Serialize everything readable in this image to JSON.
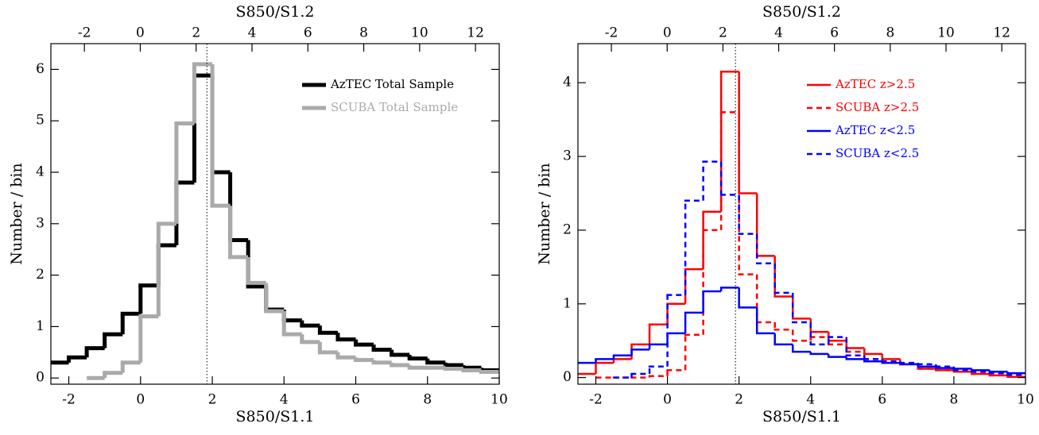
{
  "chart_data": [
    {
      "type": "histogram",
      "xlabel": "S850/S1.1",
      "x2label": "S850/S1.2",
      "ylabel": "Number / bin",
      "bins": [
        -2.5,
        -2,
        -1.5,
        -1,
        -0.5,
        0,
        0.5,
        1,
        1.5,
        2,
        2.5,
        3,
        3.5,
        4,
        4.5,
        5,
        5.5,
        6,
        6.5,
        7,
        7.5,
        8,
        8.5,
        9,
        9.5,
        10
      ],
      "xlim": [
        -2.5,
        10
      ],
      "xticks": [
        -2,
        0,
        2,
        4,
        6,
        8,
        10
      ],
      "x2lim": [
        -3.2,
        12.85
      ],
      "x2ticks": [
        -2,
        0,
        2,
        4,
        6,
        8,
        10,
        12
      ],
      "ylim": [
        -0.12,
        6.5
      ],
      "yticks": [
        0,
        1,
        2,
        3,
        4,
        5,
        6
      ],
      "vline": 1.85,
      "legend": "upper right",
      "series": [
        {
          "name": "AzTEC Total Sample",
          "color": "#000000",
          "dashed": false,
          "values": [
            0.3,
            0.4,
            0.58,
            0.85,
            1.25,
            1.8,
            2.58,
            3.8,
            5.88,
            4.0,
            2.68,
            1.78,
            1.33,
            1.12,
            1.02,
            0.88,
            0.75,
            0.65,
            0.55,
            0.45,
            0.38,
            0.3,
            0.25,
            0.2,
            0.15
          ]
        },
        {
          "name": "SCUBA Total Sample",
          "color": "#aaaaaa",
          "dashed": false,
          "values": [
            null,
            null,
            0.0,
            0.1,
            0.3,
            1.2,
            3.0,
            4.95,
            6.1,
            3.35,
            2.35,
            1.85,
            1.3,
            0.85,
            0.7,
            0.5,
            0.4,
            0.35,
            0.3,
            0.25,
            0.2,
            0.2,
            0.18,
            0.15,
            0.12
          ]
        }
      ]
    },
    {
      "type": "histogram",
      "xlabel": "S850/S1.1",
      "x2label": "S850/S1.2",
      "ylabel": "Number / bin",
      "bins": [
        -2.5,
        -2,
        -1.5,
        -1,
        -0.5,
        0,
        0.5,
        1,
        1.5,
        2,
        2.5,
        3,
        3.5,
        4,
        4.5,
        5,
        5.5,
        6,
        6.5,
        7,
        7.5,
        8,
        8.5,
        9,
        9.5,
        10
      ],
      "xlim": [
        -2.5,
        10
      ],
      "xticks": [
        -2,
        0,
        2,
        4,
        6,
        8,
        10
      ],
      "x2lim": [
        -3.2,
        12.85
      ],
      "x2ticks": [
        -2,
        0,
        2,
        4,
        6,
        8,
        10,
        12
      ],
      "ylim": [
        -0.09,
        4.53
      ],
      "yticks": [
        0,
        1,
        2,
        3,
        4
      ],
      "vline": 1.9,
      "legend": "upper right",
      "series": [
        {
          "name": "AzTEC z>2.5",
          "color": "#ff0000",
          "dashed": false,
          "values": [
            0.05,
            0.2,
            0.25,
            0.45,
            0.72,
            1.0,
            1.47,
            2.25,
            4.15,
            2.5,
            1.65,
            1.1,
            0.8,
            0.62,
            0.5,
            0.4,
            0.32,
            0.25,
            0.18,
            0.12,
            0.1,
            0.08,
            0.05,
            0.03,
            0.01
          ]
        },
        {
          "name": "SCUBA z>2.5",
          "color": "#ff0000",
          "dashed": true,
          "values": [
            null,
            0.0,
            0.0,
            0.0,
            0.02,
            0.1,
            0.58,
            2.0,
            3.6,
            1.4,
            0.75,
            0.65,
            0.5,
            0.55,
            0.45,
            0.35,
            0.25,
            0.2,
            0.18,
            0.12,
            0.1,
            0.08,
            0.05,
            0.03,
            0.02
          ]
        },
        {
          "name": "AzTEC z<2.5",
          "color": "#0000ff",
          "dashed": false,
          "values": [
            0.2,
            0.25,
            0.3,
            0.38,
            0.45,
            0.6,
            0.88,
            1.17,
            1.22,
            0.95,
            0.6,
            0.45,
            0.35,
            0.32,
            0.28,
            0.25,
            0.22,
            0.2,
            0.18,
            0.15,
            0.13,
            0.12,
            0.1,
            0.08,
            0.06
          ]
        },
        {
          "name": "SCUBA z<2.5",
          "color": "#0000ff",
          "dashed": true,
          "values": [
            null,
            null,
            0.0,
            0.05,
            0.15,
            1.12,
            2.4,
            2.93,
            2.48,
            1.95,
            1.55,
            1.15,
            0.75,
            0.45,
            0.55,
            0.3,
            0.25,
            0.22,
            0.2,
            0.18,
            0.15,
            0.1,
            0.08,
            0.06,
            0.04
          ]
        }
      ]
    }
  ]
}
